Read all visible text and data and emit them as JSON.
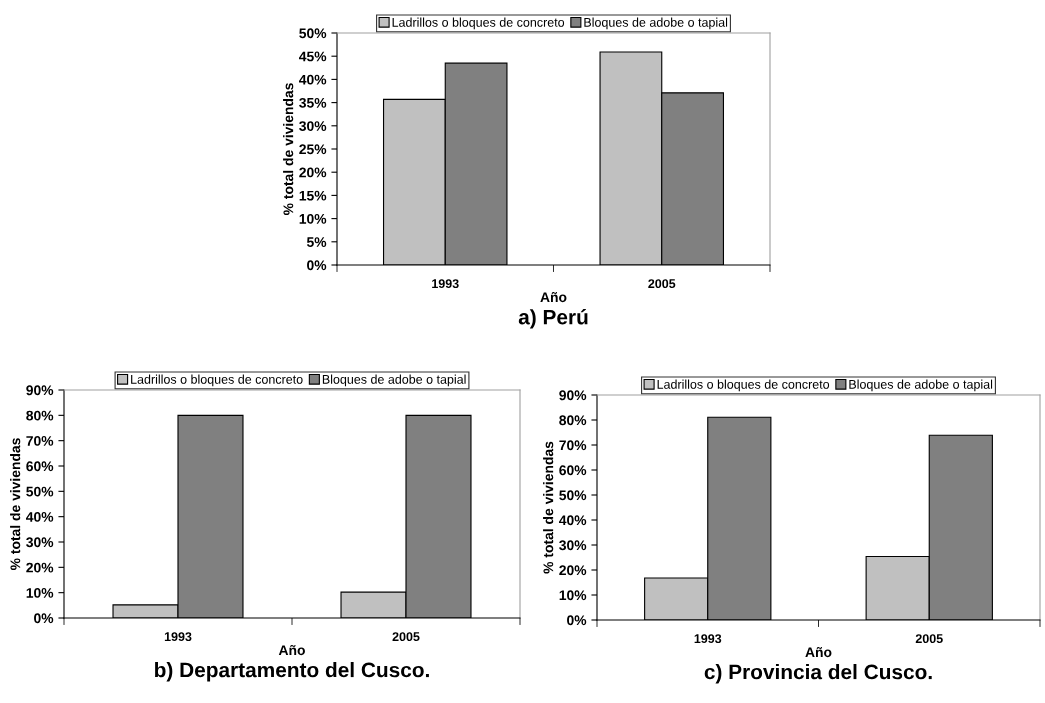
{
  "chart_data": [
    {
      "type": "bar",
      "title": "a) Perú",
      "xlabel": "Año",
      "ylabel": "% total de viviendas",
      "categories": [
        "1993",
        "2005"
      ],
      "series": [
        {
          "name": "Ladrillos o bloques de concreto",
          "color": "#c0c0c0",
          "values": [
            35.7,
            45.9
          ]
        },
        {
          "name": "Bloques de adobe o tapial",
          "color": "#808080",
          "values": [
            43.5,
            37.1
          ]
        }
      ],
      "ylim": [
        0,
        50
      ],
      "yticks": [
        {
          "value": 0,
          "label": "0%"
        },
        {
          "value": 5,
          "label": "5%"
        },
        {
          "value": 10,
          "label": "10%"
        },
        {
          "value": 15,
          "label": "15%"
        },
        {
          "value": 20,
          "label": "20%"
        },
        {
          "value": 25,
          "label": "25%"
        },
        {
          "value": 30,
          "label": "30%"
        },
        {
          "value": 35,
          "label": "35%"
        },
        {
          "value": 40,
          "label": "40%"
        },
        {
          "value": 45,
          "label": "45%"
        },
        {
          "value": 50,
          "label": "50%"
        }
      ],
      "grid": false,
      "legend": "top"
    },
    {
      "type": "bar",
      "title": "b) Departamento del Cusco.",
      "xlabel": "Año",
      "ylabel": "% total de viviendas",
      "categories": [
        "1993",
        "2005"
      ],
      "series": [
        {
          "name": "Ladrillos o bloques de concreto",
          "color": "#c0c0c0",
          "values": [
            5.2,
            10.2
          ]
        },
        {
          "name": "Bloques de adobe o tapial",
          "color": "#808080",
          "values": [
            80.0,
            80.0
          ]
        }
      ],
      "ylim": [
        0,
        90
      ],
      "yticks": [
        {
          "value": 0,
          "label": "0%"
        },
        {
          "value": 10,
          "label": "10%"
        },
        {
          "value": 20,
          "label": "20%"
        },
        {
          "value": 30,
          "label": "30%"
        },
        {
          "value": 40,
          "label": "40%"
        },
        {
          "value": 50,
          "label": "50%"
        },
        {
          "value": 60,
          "label": "60%"
        },
        {
          "value": 70,
          "label": "70%"
        },
        {
          "value": 80,
          "label": "80%"
        },
        {
          "value": 90,
          "label": "90%"
        }
      ],
      "grid": false,
      "legend": "top"
    },
    {
      "type": "bar",
      "title": "c) Provincia del Cusco.",
      "xlabel": "Año",
      "ylabel": "% total de viviendas",
      "categories": [
        "1993",
        "2005"
      ],
      "series": [
        {
          "name": "Ladrillos o bloques de concreto",
          "color": "#c0c0c0",
          "values": [
            16.8,
            25.4
          ]
        },
        {
          "name": "Bloques de adobe o tapial",
          "color": "#808080",
          "values": [
            81.1,
            73.9
          ]
        }
      ],
      "ylim": [
        0,
        90
      ],
      "yticks": [
        {
          "value": 0,
          "label": "0%"
        },
        {
          "value": 10,
          "label": "10%"
        },
        {
          "value": 20,
          "label": "20%"
        },
        {
          "value": 30,
          "label": "30%"
        },
        {
          "value": 40,
          "label": "40%"
        },
        {
          "value": 50,
          "label": "50%"
        },
        {
          "value": 60,
          "label": "60%"
        },
        {
          "value": 70,
          "label": "70%"
        },
        {
          "value": 80,
          "label": "80%"
        },
        {
          "value": 90,
          "label": "90%"
        }
      ],
      "grid": false,
      "legend": "top"
    }
  ]
}
